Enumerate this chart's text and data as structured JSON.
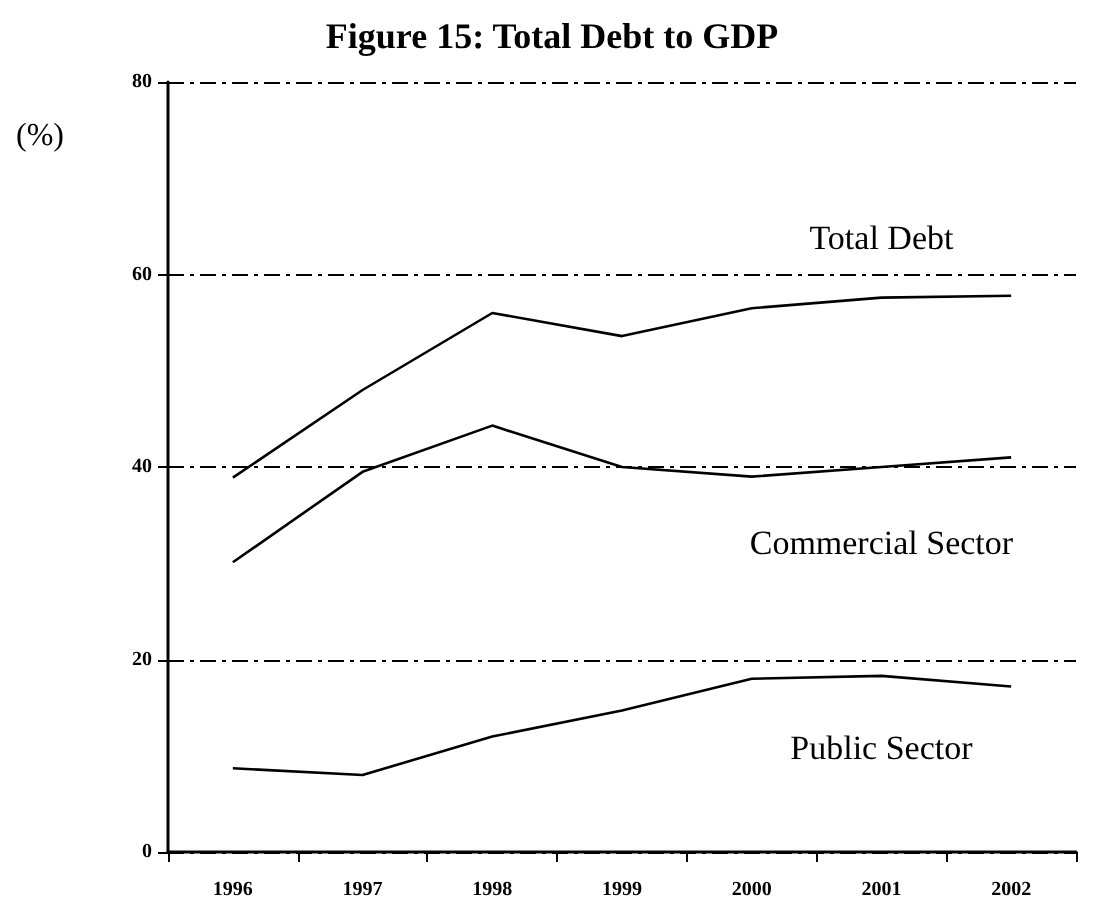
{
  "chart_data": {
    "type": "line",
    "title": "Figure 15: Total Debt to GDP",
    "ylabel": "(%)",
    "categories": [
      "1996",
      "1997",
      "1998",
      "1999",
      "2000",
      "2001",
      "2002"
    ],
    "series": [
      {
        "name": "Total Debt",
        "color": "#000000",
        "values": [
          38.9,
          48,
          56,
          53.6,
          56.5,
          57.6,
          57.8
        ]
      },
      {
        "name": "Commercial Sector",
        "color": "#000000",
        "values": [
          30.1,
          39.5,
          44.3,
          40,
          39,
          40,
          41
        ]
      },
      {
        "name": "Public Sector",
        "color": "#000000",
        "values": [
          8.7,
          8,
          12,
          14.7,
          18,
          18.3,
          17.2
        ]
      }
    ],
    "ylim": [
      0,
      80
    ],
    "yticks": [
      0,
      20,
      40,
      60,
      80
    ],
    "grid": "y",
    "marker": "none",
    "legend": false
  }
}
